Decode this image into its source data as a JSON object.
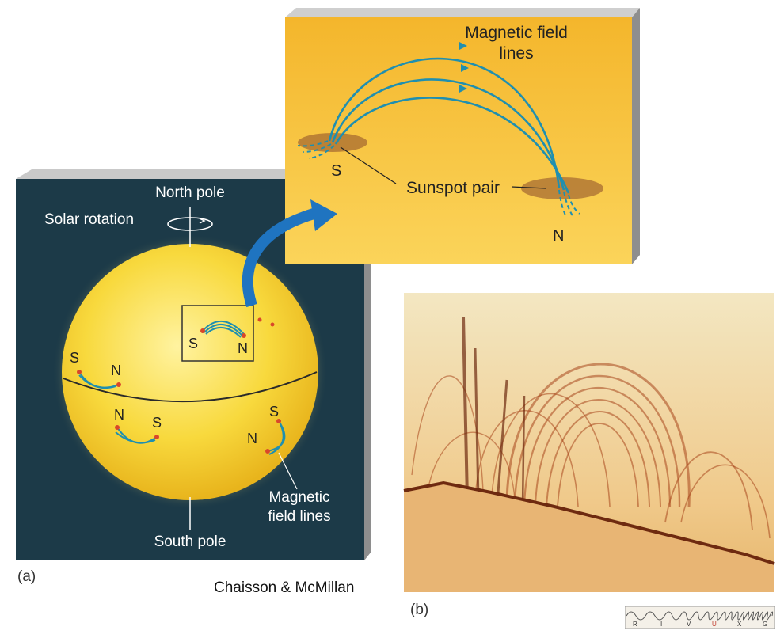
{
  "panel_a": {
    "label": "(a)",
    "north_pole": "North pole",
    "south_pole": "South pole",
    "solar_rotation": "Solar rotation",
    "mag_line1": "Magnetic",
    "mag_line2": "field lines",
    "spot_labels": {
      "box_s": "S",
      "box_n": "N",
      "left_s": "S",
      "left_n": "N",
      "mid_n": "N",
      "mid_s": "S",
      "right_s": "S",
      "right_n": "N"
    }
  },
  "inset": {
    "mag_line1": "Magnetic field",
    "mag_line2": "lines",
    "sunspot_pair": "Sunspot pair",
    "s": "S",
    "n": "N"
  },
  "panel_b": {
    "label": "(b)"
  },
  "credit": "Chaisson & McMillan",
  "spectrum_bands": [
    "R",
    "I",
    "V",
    "U",
    "X",
    "G"
  ],
  "colors": {
    "panel_bg": "#1c3a48",
    "sun": "#f6d23a",
    "inset_bg": "#f7c43a",
    "field_line": "#1f8fb0",
    "highlight_band": "#c0392b"
  }
}
